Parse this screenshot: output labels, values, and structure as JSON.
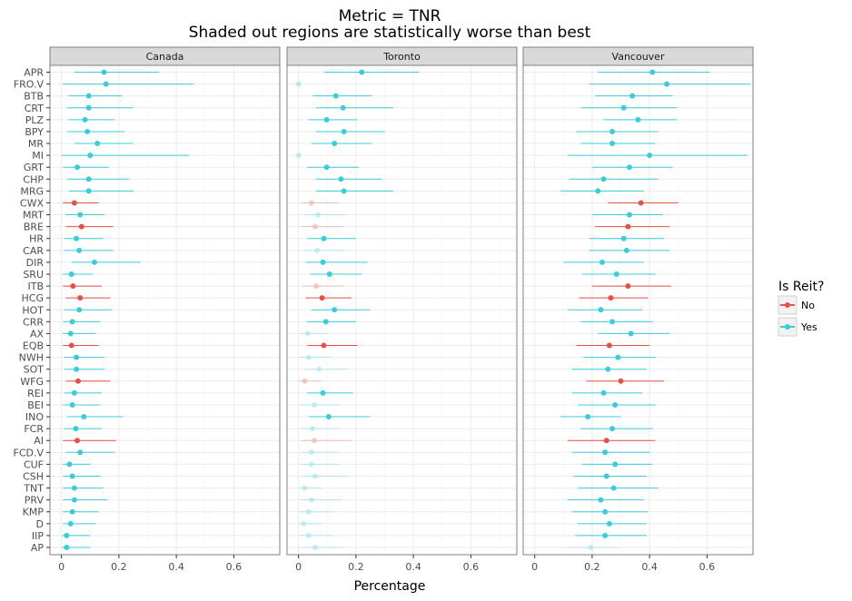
{
  "chart_data": {
    "type": "scatter",
    "title": "Metric = TNR",
    "subtitle": "Shaded out regions are statistically worse than best",
    "xlabel": "Percentage",
    "ylabel": "",
    "xlim": [
      -0.04,
      0.76
    ],
    "xticks": [
      "0",
      "0.2",
      "0.4",
      "0.6"
    ],
    "xtick_values": [
      0,
      0.2,
      0.4,
      0.6
    ],
    "grid": true,
    "legend": {
      "title": "Is Reit?",
      "placement": "right",
      "entries": [
        {
          "label": "No",
          "color": "#e1524a"
        },
        {
          "label": "Yes",
          "color": "#3fcbd6"
        }
      ]
    },
    "facets": [
      "Canada",
      "Toronto",
      "Vancouver"
    ],
    "categories": [
      "APR",
      "FRO.V",
      "BTB",
      "CRT",
      "PLZ",
      "BPY",
      "MR",
      "MI",
      "GRT",
      "CHP",
      "MRG",
      "CWX",
      "MRT",
      "BRE",
      "HR",
      "CAR",
      "DIR",
      "SRU",
      "ITB",
      "HCG",
      "HOT",
      "CRR",
      "AX",
      "EQB",
      "NWH",
      "SOT",
      "WFG",
      "REI",
      "BEI",
      "INO",
      "FCR",
      "AI",
      "FCD.V",
      "CUF",
      "CSH",
      "TNT",
      "PRV",
      "KMP",
      "D",
      "IIP",
      "AP"
    ],
    "reit": [
      1,
      1,
      1,
      1,
      1,
      1,
      1,
      1,
      1,
      1,
      1,
      0,
      1,
      0,
      1,
      1,
      1,
      1,
      0,
      0,
      1,
      1,
      1,
      0,
      1,
      1,
      0,
      1,
      1,
      1,
      1,
      0,
      1,
      1,
      1,
      1,
      1,
      1,
      1,
      1,
      1
    ],
    "series": [
      {
        "name": "Canada",
        "values": [
          0.148,
          0.155,
          0.095,
          0.095,
          0.082,
          0.09,
          0.125,
          0.1,
          0.055,
          0.095,
          0.095,
          0.045,
          0.065,
          0.07,
          0.052,
          0.062,
          0.115,
          0.035,
          0.04,
          0.065,
          0.062,
          0.038,
          0.032,
          0.035,
          0.052,
          0.052,
          0.058,
          0.045,
          0.038,
          0.078,
          0.05,
          0.055,
          0.065,
          0.028,
          0.038,
          0.045,
          0.045,
          0.038,
          0.032,
          0.018,
          0.018
        ],
        "lower": [
          0.045,
          0.005,
          0.025,
          0.02,
          0.025,
          0.02,
          0.045,
          0.0,
          0.005,
          0.02,
          0.025,
          0.005,
          0.015,
          0.015,
          0.01,
          0.01,
          0.035,
          0.005,
          0.005,
          0.015,
          0.01,
          0.005,
          0.005,
          0.005,
          0.01,
          0.01,
          0.015,
          0.01,
          0.005,
          0.02,
          0.01,
          0.005,
          0.015,
          0.005,
          0.005,
          0.005,
          0.005,
          0.005,
          0.005,
          0.002,
          0.002
        ],
        "upper": [
          0.34,
          0.46,
          0.21,
          0.25,
          0.185,
          0.22,
          0.25,
          0.445,
          0.165,
          0.235,
          0.25,
          0.13,
          0.15,
          0.18,
          0.145,
          0.18,
          0.275,
          0.11,
          0.14,
          0.17,
          0.175,
          0.135,
          0.12,
          0.13,
          0.15,
          0.15,
          0.17,
          0.14,
          0.135,
          0.215,
          0.14,
          0.19,
          0.185,
          0.1,
          0.135,
          0.145,
          0.16,
          0.13,
          0.12,
          0.1,
          0.1
        ],
        "shaded": [
          0,
          0,
          0,
          0,
          0,
          0,
          0,
          0,
          0,
          0,
          0,
          0,
          0,
          0,
          0,
          0,
          0,
          0,
          0,
          0,
          0,
          0,
          0,
          0,
          0,
          0,
          0,
          0,
          0,
          0,
          0,
          0,
          0,
          0,
          0,
          0,
          0,
          0,
          0,
          0,
          0
        ]
      },
      {
        "name": "Toronto",
        "values": [
          0.22,
          0.0,
          0.13,
          0.155,
          0.098,
          0.158,
          0.125,
          0.0,
          0.098,
          0.148,
          0.158,
          0.045,
          0.068,
          0.058,
          0.088,
          0.065,
          0.085,
          0.108,
          0.062,
          0.082,
          0.125,
          0.095,
          0.032,
          0.088,
          0.035,
          0.072,
          0.022,
          0.085,
          0.055,
          0.105,
          0.048,
          0.055,
          0.045,
          0.045,
          0.058,
          0.022,
          0.045,
          0.035,
          0.018,
          0.035,
          0.058
        ],
        "lower": [
          0.09,
          0.0,
          0.05,
          0.06,
          0.035,
          0.06,
          0.045,
          0.0,
          0.03,
          0.06,
          0.06,
          0.01,
          0.02,
          0.01,
          0.03,
          0.015,
          0.025,
          0.04,
          0.015,
          0.025,
          0.045,
          0.03,
          0.005,
          0.03,
          0.005,
          0.02,
          0.0,
          0.03,
          0.01,
          0.035,
          0.01,
          0.01,
          0.01,
          0.01,
          0.015,
          0.0,
          0.01,
          0.005,
          0.0,
          0.005,
          0.015
        ],
        "upper": [
          0.42,
          0.0,
          0.255,
          0.33,
          0.205,
          0.3,
          0.255,
          0.0,
          0.21,
          0.29,
          0.33,
          0.14,
          0.16,
          0.155,
          0.2,
          0.16,
          0.24,
          0.22,
          0.16,
          0.185,
          0.25,
          0.2,
          0.1,
          0.205,
          0.11,
          0.17,
          0.08,
          0.19,
          0.14,
          0.25,
          0.14,
          0.185,
          0.14,
          0.14,
          0.165,
          0.08,
          0.15,
          0.125,
          0.08,
          0.12,
          0.155
        ],
        "shaded": [
          0,
          1,
          0,
          0,
          0,
          0,
          0,
          1,
          0,
          0,
          0,
          1,
          1,
          1,
          0,
          1,
          0,
          0,
          1,
          0,
          0,
          0,
          1,
          0,
          1,
          1,
          1,
          0,
          1,
          0,
          1,
          1,
          1,
          1,
          1,
          1,
          1,
          1,
          1,
          1,
          1
        ]
      },
      {
        "name": "Vancouver",
        "values": [
          0.41,
          0.46,
          0.34,
          0.31,
          0.36,
          0.27,
          0.27,
          0.4,
          0.33,
          0.24,
          0.22,
          0.37,
          0.33,
          0.325,
          0.31,
          0.32,
          0.235,
          0.285,
          0.325,
          0.265,
          0.23,
          0.27,
          0.335,
          0.26,
          0.29,
          0.255,
          0.3,
          0.24,
          0.28,
          0.185,
          0.27,
          0.25,
          0.245,
          0.28,
          0.25,
          0.275,
          0.23,
          0.245,
          0.26,
          0.245,
          0.195
        ],
        "lower": [
          0.22,
          0.19,
          0.21,
          0.16,
          0.24,
          0.145,
          0.16,
          0.115,
          0.2,
          0.12,
          0.09,
          0.255,
          0.2,
          0.21,
          0.19,
          0.19,
          0.1,
          0.165,
          0.2,
          0.155,
          0.115,
          0.16,
          0.22,
          0.145,
          0.17,
          0.13,
          0.18,
          0.13,
          0.15,
          0.09,
          0.16,
          0.115,
          0.13,
          0.165,
          0.135,
          0.15,
          0.115,
          0.13,
          0.15,
          0.14,
          0.11
        ],
        "upper": [
          0.61,
          0.75,
          0.48,
          0.495,
          0.495,
          0.43,
          0.42,
          0.74,
          0.48,
          0.43,
          0.38,
          0.5,
          0.445,
          0.47,
          0.45,
          0.47,
          0.38,
          0.42,
          0.475,
          0.395,
          0.375,
          0.41,
          0.47,
          0.4,
          0.42,
          0.39,
          0.45,
          0.375,
          0.42,
          0.3,
          0.41,
          0.42,
          0.4,
          0.41,
          0.39,
          0.43,
          0.38,
          0.395,
          0.39,
          0.39,
          0.29
        ],
        "shaded": [
          0,
          0,
          0,
          0,
          0,
          0,
          0,
          0,
          0,
          0,
          0,
          0,
          0,
          0,
          0,
          0,
          0,
          0,
          0,
          0,
          0,
          0,
          0,
          0,
          0,
          0,
          0,
          0,
          0,
          0,
          0,
          0,
          0,
          0,
          0,
          0,
          0,
          0,
          0,
          0,
          1
        ]
      }
    ]
  }
}
